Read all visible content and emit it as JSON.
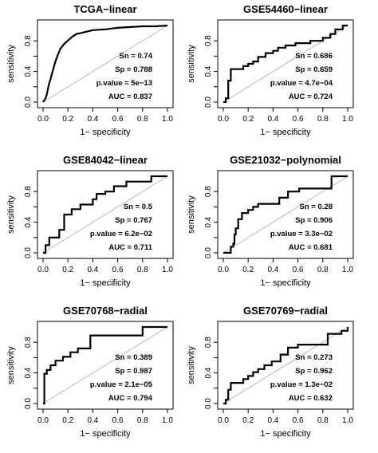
{
  "chart_data": [
    {
      "type": "line",
      "title": "TCGA−linear",
      "xlabel": "1− specificity",
      "ylabel": "sensitivity",
      "xlim": [
        0,
        1
      ],
      "ylim": [
        0,
        1
      ],
      "xticks": [
        "0.0",
        "0.2",
        "0.4",
        "0.6",
        "0.8",
        "1.0"
      ],
      "yticks": [
        "0.0",
        "0.4",
        "0.8"
      ],
      "stats": [
        "Sn = 0.74",
        "Sp = 0.788",
        "p.value = 5e−13",
        "AUC = 0.837"
      ],
      "x": [
        0,
        0.02,
        0.03,
        0.04,
        0.05,
        0.06,
        0.07,
        0.08,
        0.09,
        0.1,
        0.11,
        0.12,
        0.13,
        0.14,
        0.15,
        0.17,
        0.19,
        0.21,
        0.24,
        0.27,
        0.3,
        0.35,
        0.4,
        0.5,
        0.55,
        0.6,
        0.7,
        0.8,
        0.9,
        1.0
      ],
      "y": [
        0,
        0.05,
        0.1,
        0.18,
        0.25,
        0.3,
        0.36,
        0.42,
        0.48,
        0.53,
        0.58,
        0.62,
        0.66,
        0.7,
        0.72,
        0.76,
        0.79,
        0.82,
        0.86,
        0.89,
        0.9,
        0.92,
        0.94,
        0.95,
        0.96,
        0.97,
        0.98,
        0.99,
        0.99,
        1.0
      ]
    },
    {
      "type": "line",
      "title": "GSE54460−linear",
      "xlabel": "1− specificity",
      "ylabel": "sensitivity",
      "xlim": [
        0,
        1
      ],
      "ylim": [
        0,
        1
      ],
      "xticks": [
        "0.0",
        "0.2",
        "0.4",
        "0.6",
        "0.8",
        "1.0"
      ],
      "yticks": [
        "0.0",
        "0.4",
        "0.8"
      ],
      "stats": [
        "Sn = 0.686",
        "Sp = 0.659",
        "p.value = 4.7e−04",
        "AUC = 0.724"
      ],
      "x": [
        0,
        0.02,
        0.02,
        0.04,
        0.04,
        0.06,
        0.06,
        0.16,
        0.16,
        0.2,
        0.2,
        0.24,
        0.24,
        0.28,
        0.28,
        0.34,
        0.34,
        0.4,
        0.4,
        0.44,
        0.44,
        0.5,
        0.5,
        0.58,
        0.58,
        0.7,
        0.7,
        0.8,
        0.8,
        0.86,
        0.86,
        0.9,
        0.9,
        0.96,
        0.96,
        1.0
      ],
      "y": [
        0,
        0,
        0.05,
        0.05,
        0.28,
        0.28,
        0.43,
        0.43,
        0.47,
        0.47,
        0.5,
        0.5,
        0.53,
        0.53,
        0.59,
        0.59,
        0.64,
        0.64,
        0.67,
        0.67,
        0.71,
        0.71,
        0.74,
        0.74,
        0.77,
        0.77,
        0.8,
        0.8,
        0.84,
        0.84,
        0.89,
        0.89,
        0.95,
        0.95,
        1.0,
        1.0
      ]
    },
    {
      "type": "line",
      "title": "GSE84042−linear",
      "xlabel": "1− specificity",
      "ylabel": "sensitivity",
      "xlim": [
        0,
        1
      ],
      "ylim": [
        0,
        1
      ],
      "xticks": [
        "0.0",
        "0.2",
        "0.4",
        "0.6",
        "0.8",
        "1.0"
      ],
      "yticks": [
        "0.0",
        "0.4",
        "0.8"
      ],
      "stats": [
        "Sn = 0.5",
        "Sp = 0.767",
        "p.value = 6.2e−02",
        "AUC = 0.711"
      ],
      "x": [
        0,
        0.02,
        0.02,
        0.05,
        0.05,
        0.13,
        0.13,
        0.17,
        0.17,
        0.23,
        0.23,
        0.3,
        0.3,
        0.4,
        0.4,
        0.43,
        0.43,
        0.5,
        0.5,
        0.57,
        0.57,
        0.67,
        0.67,
        0.87,
        0.87,
        1.0
      ],
      "y": [
        0,
        0,
        0.1,
        0.1,
        0.2,
        0.2,
        0.3,
        0.3,
        0.5,
        0.5,
        0.57,
        0.57,
        0.63,
        0.63,
        0.7,
        0.7,
        0.77,
        0.77,
        0.8,
        0.8,
        0.87,
        0.87,
        0.93,
        0.93,
        1.0,
        1.0
      ]
    },
    {
      "type": "line",
      "title": "GSE21032−polynomial",
      "xlabel": "1− specificity",
      "ylabel": "sensitivity",
      "xlim": [
        0,
        1
      ],
      "ylim": [
        0,
        1
      ],
      "xticks": [
        "0.0",
        "0.2",
        "0.4",
        "0.6",
        "0.8",
        "1.0"
      ],
      "yticks": [
        "0.0",
        "0.4",
        "0.8"
      ],
      "stats": [
        "Sn = 0.28",
        "Sp = 0.906",
        "p.value = 3.3e−02",
        "AUC = 0.681"
      ],
      "x": [
        0,
        0.06,
        0.06,
        0.08,
        0.08,
        0.09,
        0.09,
        0.1,
        0.1,
        0.12,
        0.12,
        0.15,
        0.15,
        0.2,
        0.2,
        0.24,
        0.24,
        0.28,
        0.28,
        0.45,
        0.45,
        0.52,
        0.52,
        0.61,
        0.61,
        0.87,
        0.87,
        1.0
      ],
      "y": [
        0,
        0,
        0.08,
        0.08,
        0.12,
        0.12,
        0.24,
        0.24,
        0.32,
        0.32,
        0.44,
        0.44,
        0.52,
        0.52,
        0.56,
        0.56,
        0.6,
        0.6,
        0.64,
        0.64,
        0.72,
        0.72,
        0.8,
        0.8,
        0.84,
        0.84,
        1.0,
        1.0
      ]
    },
    {
      "type": "line",
      "title": "GSE70768−radial",
      "xlabel": "1− specificity",
      "ylabel": "sensitivity",
      "xlim": [
        0,
        1
      ],
      "ylim": [
        0,
        1
      ],
      "xticks": [
        "0.0",
        "0.2",
        "0.4",
        "0.6",
        "0.8",
        "1.0"
      ],
      "yticks": [
        "0.0",
        "0.4",
        "0.8"
      ],
      "stats": [
        "Sn = 0.389",
        "Sp = 0.987",
        "p.value = 2.1e−05",
        "AUC = 0.794"
      ],
      "x": [
        0,
        0.01,
        0.01,
        0.03,
        0.03,
        0.06,
        0.06,
        0.1,
        0.1,
        0.16,
        0.16,
        0.22,
        0.22,
        0.28,
        0.28,
        0.38,
        0.38,
        0.8,
        0.8,
        1.0
      ],
      "y": [
        0,
        0,
        0.39,
        0.39,
        0.44,
        0.44,
        0.5,
        0.5,
        0.56,
        0.56,
        0.61,
        0.61,
        0.67,
        0.67,
        0.72,
        0.72,
        0.89,
        0.89,
        1.0,
        1.0
      ]
    },
    {
      "type": "line",
      "title": "GSE70769−radial",
      "xlabel": "1− specificity",
      "ylabel": "sensitivity",
      "xlim": [
        0,
        1
      ],
      "ylim": [
        0,
        1
      ],
      "xticks": [
        "0.0",
        "0.2",
        "0.4",
        "0.6",
        "0.8",
        "1.0"
      ],
      "yticks": [
        "0.0",
        "0.4",
        "0.8"
      ],
      "stats": [
        "Sn = 0.273",
        "Sp = 0.962",
        "p.value = 1.3e−02",
        "AUC = 0.632"
      ],
      "x": [
        0,
        0.02,
        0.02,
        0.04,
        0.04,
        0.06,
        0.06,
        0.16,
        0.16,
        0.2,
        0.2,
        0.24,
        0.24,
        0.28,
        0.28,
        0.33,
        0.33,
        0.39,
        0.39,
        0.46,
        0.46,
        0.52,
        0.52,
        0.6,
        0.6,
        0.84,
        0.84,
        0.95,
        0.95,
        1.0,
        1.0
      ],
      "y": [
        0,
        0,
        0.05,
        0.05,
        0.18,
        0.18,
        0.27,
        0.27,
        0.32,
        0.32,
        0.36,
        0.36,
        0.41,
        0.41,
        0.45,
        0.45,
        0.5,
        0.5,
        0.55,
        0.55,
        0.64,
        0.64,
        0.73,
        0.73,
        0.77,
        0.77,
        0.91,
        0.91,
        0.95,
        0.95,
        1.0
      ]
    }
  ]
}
